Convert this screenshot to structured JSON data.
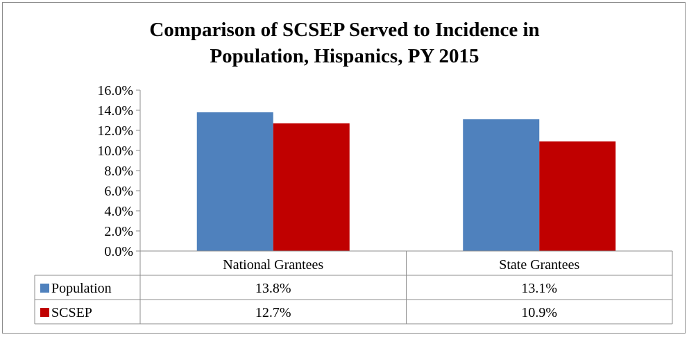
{
  "chart_data": {
    "type": "bar",
    "title_lines": [
      "Comparison of SCSEP Served to Incidence in",
      "Population, Hispanics, PY 2015"
    ],
    "categories": [
      "National Grantees",
      "State Grantees"
    ],
    "series": [
      {
        "name": "Population",
        "values": [
          13.8,
          13.1
        ],
        "labels": [
          "13.8%",
          "13.1%"
        ],
        "color": "#4f81bd"
      },
      {
        "name": "SCSEP",
        "values": [
          12.7,
          10.9
        ],
        "labels": [
          "12.7%",
          "10.9%"
        ],
        "color": "#c00000"
      }
    ],
    "ylim": [
      0,
      16
    ],
    "yticks": [
      "0.0%",
      "2.0%",
      "4.0%",
      "6.0%",
      "8.0%",
      "10.0%",
      "12.0%",
      "14.0%",
      "16.0%"
    ],
    "xlabel": "",
    "ylabel": "",
    "grid": false,
    "legend": "data table"
  }
}
